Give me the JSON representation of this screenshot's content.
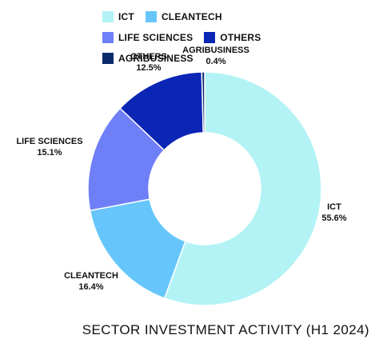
{
  "chart_data": {
    "type": "pie",
    "donut": true,
    "title": "SECTOR INVESTMENT ACTIVITY (H1 2024)",
    "legend_position": "top",
    "slices": [
      {
        "name": "ICT",
        "value": 55.6,
        "label": "55.6%",
        "color": "#b3f3f5"
      },
      {
        "name": "CLEANTECH",
        "value": 16.4,
        "label": "16.4%",
        "color": "#66c6fb"
      },
      {
        "name": "LIFE SCIENCES",
        "value": 15.1,
        "label": "15.1%",
        "color": "#6f7ff8"
      },
      {
        "name": "OTHERS",
        "value": 12.5,
        "label": "12.5%",
        "color": "#0b25b5"
      },
      {
        "name": "AGRIBUSINESS",
        "value": 0.4,
        "label": "0.4%",
        "color": "#0b2a6b"
      }
    ]
  }
}
